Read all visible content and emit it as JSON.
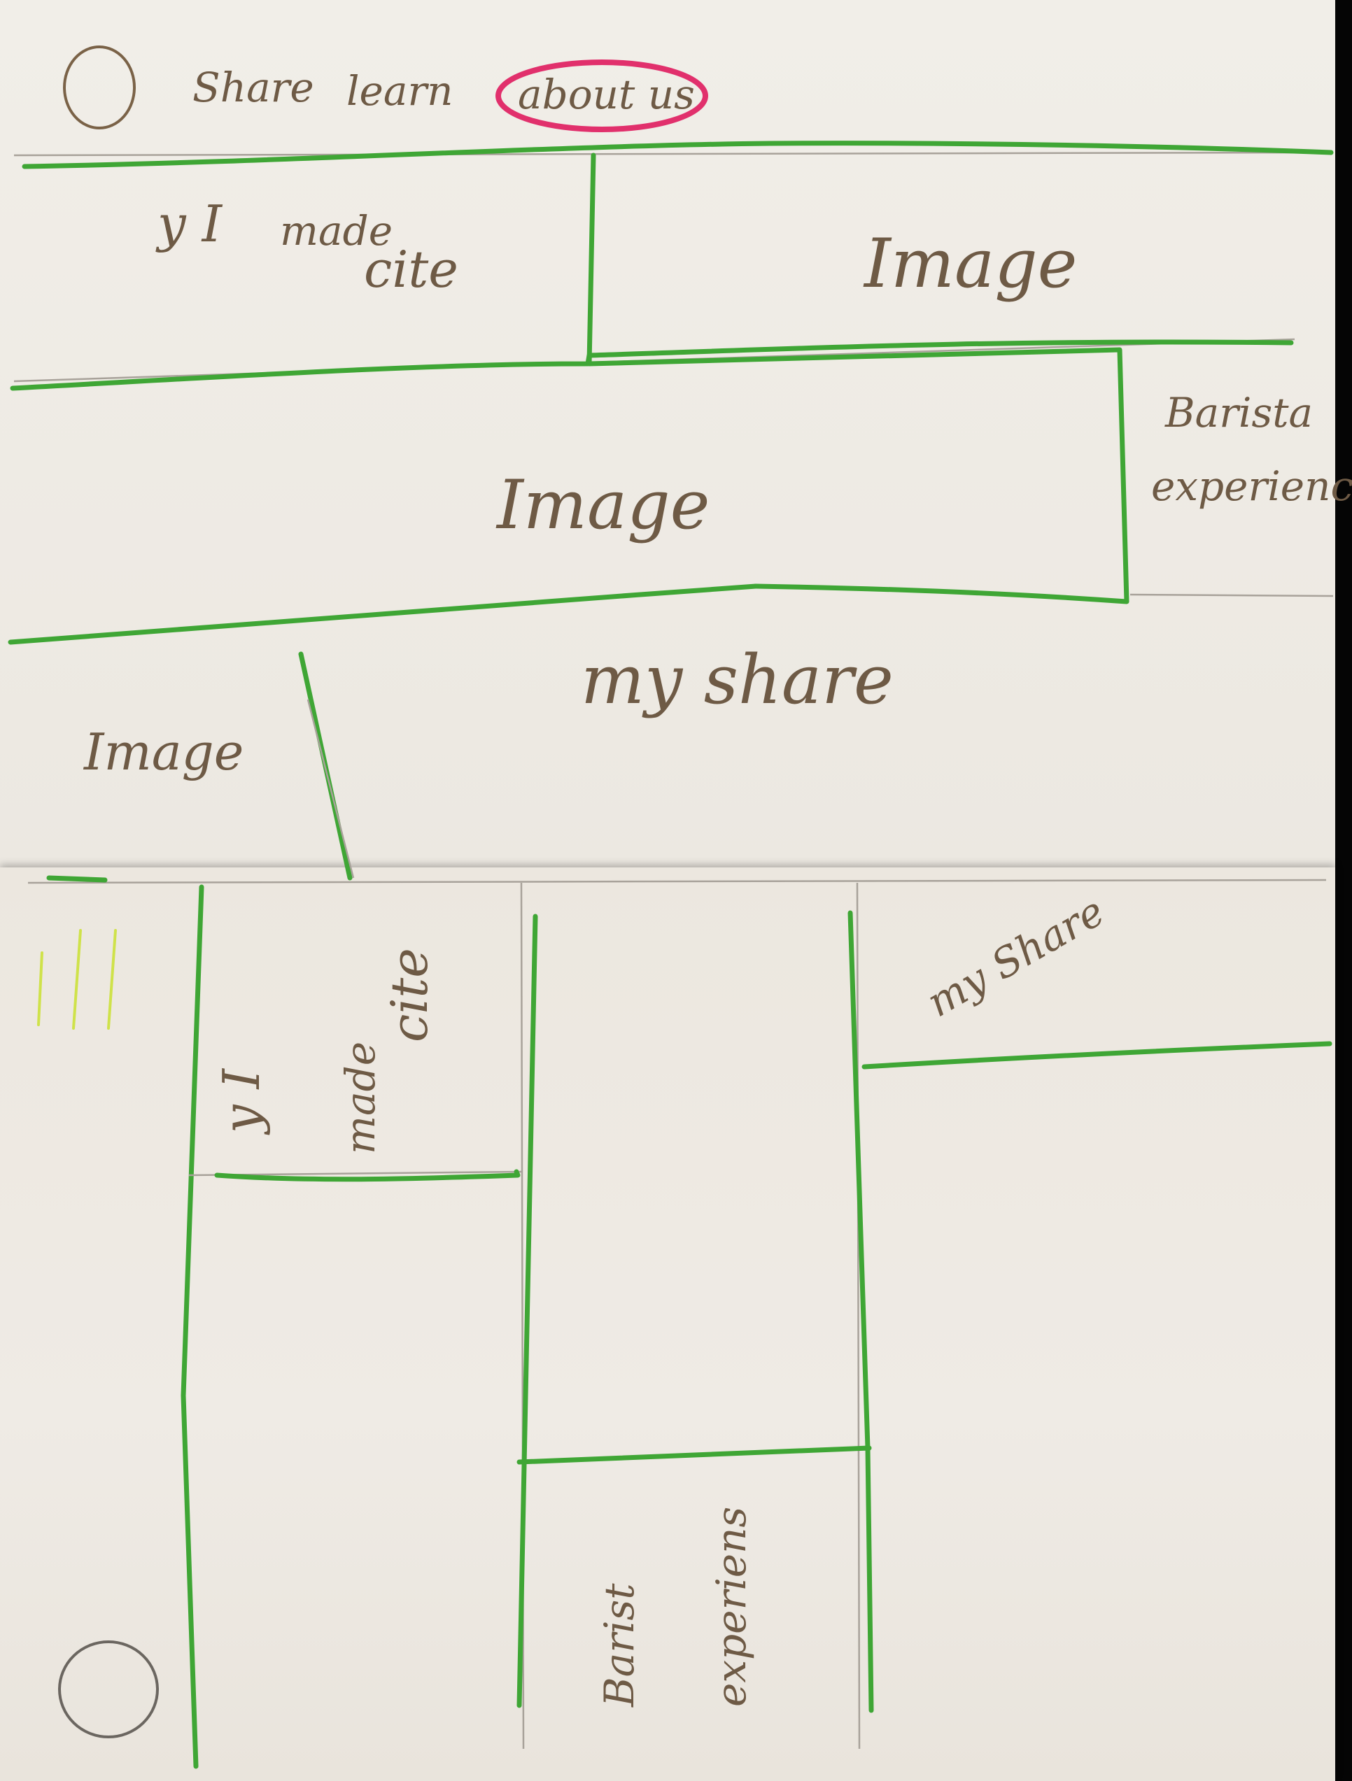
{
  "sketch": {
    "top_page": {
      "nav": {
        "share": "Share",
        "learn": "learn",
        "about": "about us"
      },
      "hero_left": {
        "line1": "y I",
        "line2": "made",
        "line3": "cite"
      },
      "hero_right": "Image",
      "band_image": "Image",
      "band_side": {
        "line1": "Barista",
        "line2": "experience"
      },
      "story_title": "my share",
      "story_image": "Image"
    },
    "bottom_page": {
      "col1": {
        "line1": "y I",
        "line2": "made",
        "line3": "cite"
      },
      "col2": {
        "line1": "Barist",
        "line2": "experiens"
      },
      "col3": "my Share"
    }
  },
  "colors": {
    "wireframe_lines": "#3fa635",
    "highlight": "#e1306c",
    "ink": "#6e5a45",
    "paper": "#efebe5"
  }
}
